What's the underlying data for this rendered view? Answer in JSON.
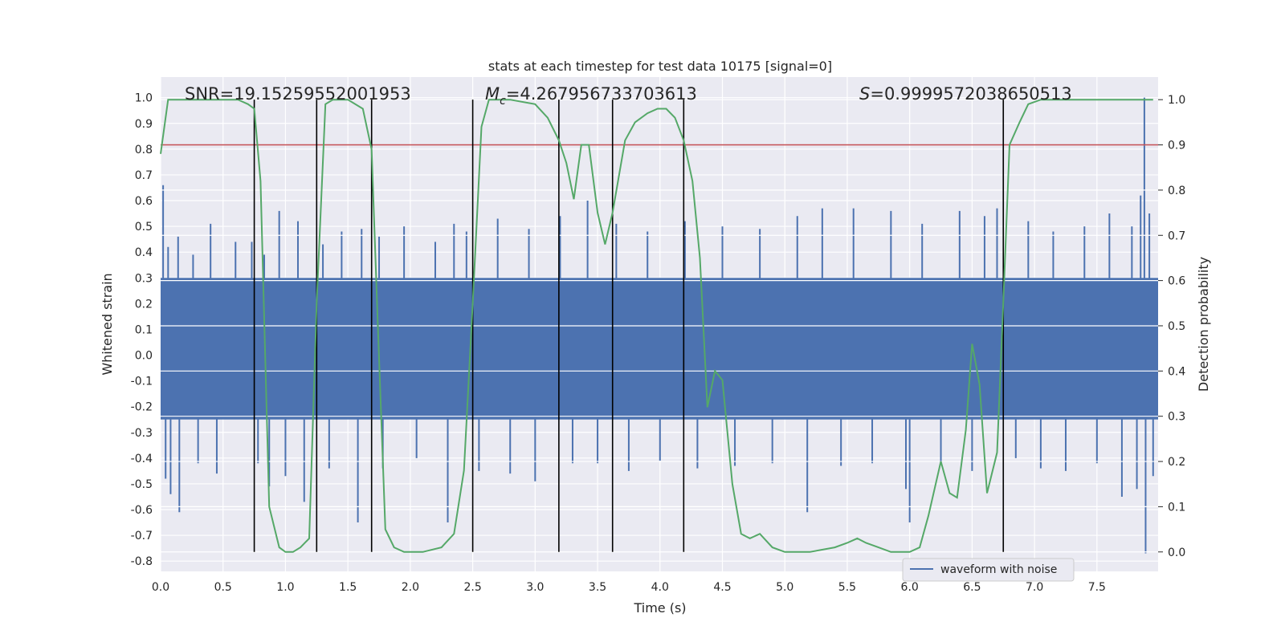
{
  "chart_data": {
    "type": "line",
    "title": "stats at each timestep for test data 10175 [signal=0]",
    "xlabel": "Time (s)",
    "ylabel": "Whitened strain",
    "y2label": "Detection probability",
    "xlim": [
      0.0,
      7.99
    ],
    "ylim": [
      -0.84,
      1.08
    ],
    "y2lim": [
      -0.043,
      1.05
    ],
    "xticks": [
      0.0,
      0.5,
      1.0,
      1.5,
      2.0,
      2.5,
      3.0,
      3.5,
      4.0,
      4.5,
      5.0,
      5.5,
      6.0,
      6.5,
      7.0,
      7.5
    ],
    "yticks": [
      -0.8,
      -0.7,
      -0.6,
      -0.5,
      -0.4,
      -0.3,
      -0.2,
      -0.1,
      0.0,
      0.1,
      0.2,
      0.3,
      0.4,
      0.5,
      0.6,
      0.7,
      0.8,
      0.9,
      1.0
    ],
    "y2ticks": [
      0.0,
      0.1,
      0.2,
      0.3,
      0.4,
      0.5,
      0.6,
      0.7,
      0.8,
      0.9,
      1.0
    ],
    "grid": true,
    "legend": {
      "entries": [
        "waveform with noise"
      ],
      "position": "lower-center-right"
    },
    "annotations": {
      "snr": "SNR=19.15259552001953",
      "mc_symbol": "M",
      "mc_sub": "c",
      "mc_value": "=4.267956733703613",
      "s_symbol": "S",
      "s_value": "=0.9999572038650513"
    },
    "threshold": {
      "axis": "y2",
      "value": 0.9,
      "color": "#c44e52"
    },
    "event_markers": [
      0.75,
      1.25,
      1.69,
      2.5,
      3.19,
      3.62,
      4.19,
      6.75
    ],
    "series": [
      {
        "name": "waveform with noise",
        "axis": "y",
        "color": "#4c72b0",
        "band": [
          -0.25,
          0.3
        ],
        "spikes": [
          {
            "x": 0.02,
            "y": 0.66
          },
          {
            "x": 0.04,
            "y": -0.48
          },
          {
            "x": 0.06,
            "y": 0.42
          },
          {
            "x": 0.08,
            "y": -0.54
          },
          {
            "x": 0.14,
            "y": 0.46
          },
          {
            "x": 0.15,
            "y": -0.61
          },
          {
            "x": 0.26,
            "y": 0.39
          },
          {
            "x": 0.3,
            "y": -0.42
          },
          {
            "x": 0.4,
            "y": 0.51
          },
          {
            "x": 0.45,
            "y": -0.46
          },
          {
            "x": 0.6,
            "y": 0.44
          },
          {
            "x": 0.73,
            "y": 0.44
          },
          {
            "x": 0.78,
            "y": -0.42
          },
          {
            "x": 0.83,
            "y": 0.39
          },
          {
            "x": 0.87,
            "y": -0.51
          },
          {
            "x": 0.95,
            "y": 0.56
          },
          {
            "x": 1.0,
            "y": -0.47
          },
          {
            "x": 1.1,
            "y": 0.52
          },
          {
            "x": 1.15,
            "y": -0.57
          },
          {
            "x": 1.3,
            "y": 0.43
          },
          {
            "x": 1.35,
            "y": -0.44
          },
          {
            "x": 1.45,
            "y": 0.48
          },
          {
            "x": 1.58,
            "y": -0.65
          },
          {
            "x": 1.61,
            "y": 0.49
          },
          {
            "x": 1.75,
            "y": 0.46
          },
          {
            "x": 1.78,
            "y": -0.44
          },
          {
            "x": 1.95,
            "y": 0.5
          },
          {
            "x": 2.05,
            "y": -0.4
          },
          {
            "x": 2.2,
            "y": 0.44
          },
          {
            "x": 2.3,
            "y": -0.65
          },
          {
            "x": 2.35,
            "y": 0.51
          },
          {
            "x": 2.45,
            "y": 0.48
          },
          {
            "x": 2.55,
            "y": -0.45
          },
          {
            "x": 2.7,
            "y": 0.53
          },
          {
            "x": 2.8,
            "y": -0.46
          },
          {
            "x": 2.95,
            "y": 0.49
          },
          {
            "x": 3.0,
            "y": -0.49
          },
          {
            "x": 3.2,
            "y": 0.54
          },
          {
            "x": 3.3,
            "y": -0.42
          },
          {
            "x": 3.42,
            "y": 0.6
          },
          {
            "x": 3.5,
            "y": -0.42
          },
          {
            "x": 3.65,
            "y": 0.51
          },
          {
            "x": 3.75,
            "y": -0.45
          },
          {
            "x": 3.9,
            "y": 0.48
          },
          {
            "x": 4.0,
            "y": -0.41
          },
          {
            "x": 4.2,
            "y": 0.52
          },
          {
            "x": 4.3,
            "y": -0.44
          },
          {
            "x": 4.5,
            "y": 0.5
          },
          {
            "x": 4.6,
            "y": -0.43
          },
          {
            "x": 4.8,
            "y": 0.49
          },
          {
            "x": 4.9,
            "y": -0.42
          },
          {
            "x": 5.1,
            "y": 0.54
          },
          {
            "x": 5.18,
            "y": -0.61
          },
          {
            "x": 5.3,
            "y": 0.57
          },
          {
            "x": 5.45,
            "y": -0.43
          },
          {
            "x": 5.55,
            "y": 0.57
          },
          {
            "x": 5.7,
            "y": -0.42
          },
          {
            "x": 5.85,
            "y": 0.56
          },
          {
            "x": 5.97,
            "y": -0.52
          },
          {
            "x": 6.0,
            "y": -0.65
          },
          {
            "x": 6.1,
            "y": 0.51
          },
          {
            "x": 6.25,
            "y": -0.42
          },
          {
            "x": 6.4,
            "y": 0.56
          },
          {
            "x": 6.5,
            "y": -0.45
          },
          {
            "x": 6.6,
            "y": 0.54
          },
          {
            "x": 6.7,
            "y": 0.57
          },
          {
            "x": 6.85,
            "y": -0.4
          },
          {
            "x": 6.95,
            "y": 0.52
          },
          {
            "x": 7.05,
            "y": -0.44
          },
          {
            "x": 7.15,
            "y": 0.48
          },
          {
            "x": 7.25,
            "y": -0.45
          },
          {
            "x": 7.4,
            "y": 0.5
          },
          {
            "x": 7.5,
            "y": -0.42
          },
          {
            "x": 7.6,
            "y": 0.55
          },
          {
            "x": 7.7,
            "y": -0.55
          },
          {
            "x": 7.78,
            "y": 0.5
          },
          {
            "x": 7.82,
            "y": -0.52
          },
          {
            "x": 7.85,
            "y": 0.62
          },
          {
            "x": 7.88,
            "y": 1.0
          },
          {
            "x": 7.89,
            "y": -0.77
          },
          {
            "x": 7.92,
            "y": 0.55
          },
          {
            "x": 7.95,
            "y": -0.47
          }
        ]
      },
      {
        "name": "detection probability",
        "axis": "y2",
        "color": "#55a868",
        "points": [
          [
            0.0,
            0.88
          ],
          [
            0.06,
            1.0
          ],
          [
            0.3,
            1.0
          ],
          [
            0.62,
            1.0
          ],
          [
            0.7,
            0.99
          ],
          [
            0.75,
            0.98
          ],
          [
            0.8,
            0.82
          ],
          [
            0.87,
            0.1
          ],
          [
            0.95,
            0.01
          ],
          [
            1.0,
            0.0
          ],
          [
            1.06,
            0.0
          ],
          [
            1.12,
            0.01
          ],
          [
            1.19,
            0.03
          ],
          [
            1.25,
            0.55
          ],
          [
            1.32,
            0.99
          ],
          [
            1.38,
            1.0
          ],
          [
            1.5,
            1.0
          ],
          [
            1.62,
            0.98
          ],
          [
            1.69,
            0.89
          ],
          [
            1.74,
            0.5
          ],
          [
            1.8,
            0.05
          ],
          [
            1.87,
            0.01
          ],
          [
            1.95,
            0.0
          ],
          [
            2.1,
            0.0
          ],
          [
            2.25,
            0.01
          ],
          [
            2.35,
            0.04
          ],
          [
            2.43,
            0.18
          ],
          [
            2.5,
            0.55
          ],
          [
            2.57,
            0.94
          ],
          [
            2.63,
            1.0
          ],
          [
            2.8,
            1.0
          ],
          [
            3.0,
            0.99
          ],
          [
            3.1,
            0.96
          ],
          [
            3.19,
            0.91
          ],
          [
            3.25,
            0.86
          ],
          [
            3.31,
            0.78
          ],
          [
            3.37,
            0.9
          ],
          [
            3.43,
            0.9
          ],
          [
            3.5,
            0.75
          ],
          [
            3.56,
            0.68
          ],
          [
            3.62,
            0.75
          ],
          [
            3.72,
            0.91
          ],
          [
            3.8,
            0.95
          ],
          [
            3.9,
            0.97
          ],
          [
            3.98,
            0.98
          ],
          [
            4.05,
            0.98
          ],
          [
            4.12,
            0.96
          ],
          [
            4.19,
            0.91
          ],
          [
            4.26,
            0.82
          ],
          [
            4.32,
            0.65
          ],
          [
            4.38,
            0.32
          ],
          [
            4.44,
            0.4
          ],
          [
            4.5,
            0.38
          ],
          [
            4.58,
            0.15
          ],
          [
            4.65,
            0.04
          ],
          [
            4.72,
            0.03
          ],
          [
            4.8,
            0.04
          ],
          [
            4.9,
            0.01
          ],
          [
            5.0,
            0.0
          ],
          [
            5.2,
            0.0
          ],
          [
            5.4,
            0.01
          ],
          [
            5.5,
            0.02
          ],
          [
            5.58,
            0.03
          ],
          [
            5.65,
            0.02
          ],
          [
            5.75,
            0.01
          ],
          [
            5.85,
            0.0
          ],
          [
            6.0,
            0.0
          ],
          [
            6.08,
            0.01
          ],
          [
            6.15,
            0.08
          ],
          [
            6.25,
            0.2
          ],
          [
            6.32,
            0.13
          ],
          [
            6.38,
            0.12
          ],
          [
            6.45,
            0.27
          ],
          [
            6.5,
            0.46
          ],
          [
            6.56,
            0.37
          ],
          [
            6.62,
            0.13
          ],
          [
            6.7,
            0.22
          ],
          [
            6.75,
            0.55
          ],
          [
            6.8,
            0.9
          ],
          [
            6.88,
            0.95
          ],
          [
            6.95,
            0.99
          ],
          [
            7.05,
            1.0
          ],
          [
            7.5,
            1.0
          ],
          [
            7.95,
            1.0
          ]
        ]
      }
    ]
  }
}
